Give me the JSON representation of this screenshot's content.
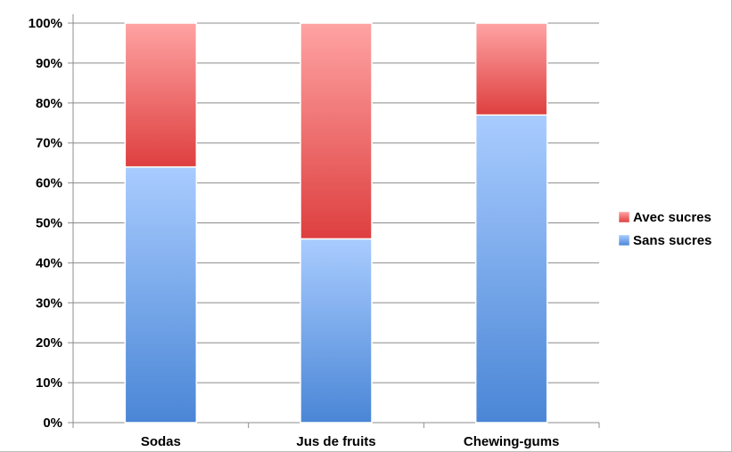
{
  "chart_data": {
    "type": "bar",
    "stacked": true,
    "categories": [
      "Sodas",
      "Jus de fruits",
      "Chewing-gums"
    ],
    "series": [
      {
        "name": "Sans sucres",
        "values": [
          64,
          46,
          77
        ],
        "color": "#6fa3e8"
      },
      {
        "name": "Avec sucres",
        "values": [
          36,
          54,
          23
        ],
        "color": "#e85c5c"
      }
    ],
    "ylim": [
      0,
      100
    ],
    "y_ticks": [
      "0%",
      "10%",
      "20%",
      "30%",
      "40%",
      "50%",
      "60%",
      "70%",
      "80%",
      "90%",
      "100%"
    ],
    "y_tick_values": [
      0,
      10,
      20,
      30,
      40,
      50,
      60,
      70,
      80,
      90,
      100
    ],
    "grid": true,
    "legend_position": "right",
    "legend_order": [
      "Avec sucres",
      "Sans sucres"
    ],
    "title": "",
    "xlabel": "",
    "ylabel": ""
  }
}
